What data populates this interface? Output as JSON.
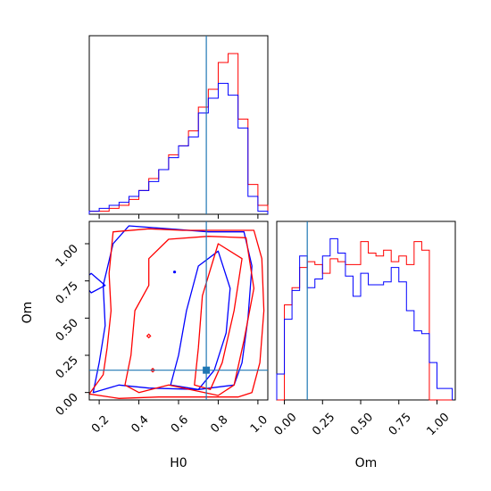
{
  "chart_data": {
    "type": "corner",
    "parameters": [
      "H0",
      "Om"
    ],
    "colors": {
      "red": "#ff0000",
      "blue": "#0000ff",
      "truth": "#1f77b4"
    },
    "truth": {
      "H0": 0.74,
      "Om": 0.15
    },
    "hist_H0": {
      "title": "",
      "xlim": [
        0.15,
        1.05
      ],
      "bin_edges": [
        0.15,
        0.2,
        0.25,
        0.3,
        0.35,
        0.4,
        0.45,
        0.5,
        0.55,
        0.6,
        0.65,
        0.7,
        0.75,
        0.8,
        0.85,
        0.9,
        0.95,
        1.0,
        1.05
      ],
      "series": [
        {
          "color": "red",
          "values": [
            1,
            1,
            2,
            3,
            5,
            8,
            12,
            15,
            20,
            23,
            28,
            36,
            42,
            51,
            54,
            32,
            10,
            3
          ]
        },
        {
          "color": "blue",
          "values": [
            1,
            2,
            3,
            4,
            6,
            8,
            11,
            15,
            19,
            23,
            26,
            34,
            39,
            44,
            40,
            29,
            6,
            1
          ]
        }
      ]
    },
    "hist_Om": {
      "xlim": [
        -0.05,
        1.12
      ],
      "xticks": [
        "0.00",
        "0.25",
        "0.50",
        "0.75",
        "1.00"
      ],
      "bin_edges": [
        -0.05,
        0.0,
        0.05,
        0.1,
        0.15,
        0.2,
        0.25,
        0.3,
        0.35,
        0.4,
        0.45,
        0.5,
        0.55,
        0.6,
        0.65,
        0.7,
        0.75,
        0.8,
        0.85,
        0.9,
        0.95,
        1.0,
        1.05,
        1.1
      ],
      "series": [
        {
          "color": "red",
          "values": [
            0,
            33,
            39,
            46,
            48,
            47,
            44,
            49,
            48,
            47,
            47,
            55,
            51,
            50,
            52,
            48,
            50,
            47,
            55,
            52,
            0,
            0,
            0
          ]
        },
        {
          "color": "blue",
          "values": [
            9,
            28,
            38,
            50,
            39,
            42,
            50,
            56,
            51,
            43,
            36,
            44,
            40,
            40,
            41,
            46,
            41,
            31,
            24,
            23,
            13,
            4,
            4
          ]
        }
      ]
    },
    "contour": {
      "xlabel": "H0",
      "ylabel": "Om",
      "xlim": [
        0.15,
        1.05
      ],
      "ylim": [
        -0.05,
        1.15
      ],
      "xticks": [
        "0.2",
        "0.4",
        "0.6",
        "0.8",
        "1.0"
      ],
      "yticks": [
        "0.00",
        "0.25",
        "0.50",
        "0.75",
        "1.00"
      ],
      "red_levels": [
        [
          [
            0.15,
            -0.01
          ],
          [
            0.22,
            0.12
          ],
          [
            0.24,
            0.3
          ],
          [
            0.26,
            0.55
          ],
          [
            0.25,
            0.8
          ],
          [
            0.27,
            1.08
          ],
          [
            0.45,
            1.1
          ],
          [
            0.62,
            1.09
          ],
          [
            0.8,
            1.09
          ],
          [
            0.98,
            1.09
          ],
          [
            1.02,
            0.9
          ],
          [
            1.03,
            0.55
          ],
          [
            1.01,
            0.2
          ],
          [
            0.97,
            0.0
          ],
          [
            0.9,
            -0.03
          ],
          [
            0.75,
            -0.03
          ],
          [
            0.5,
            -0.03
          ],
          [
            0.3,
            -0.04
          ],
          [
            0.15,
            -0.01
          ]
        ],
        [
          [
            0.33,
            0.05
          ],
          [
            0.36,
            0.25
          ],
          [
            0.38,
            0.55
          ],
          [
            0.45,
            0.72
          ],
          [
            0.45,
            0.9
          ],
          [
            0.55,
            1.03
          ],
          [
            0.75,
            1.05
          ],
          [
            0.94,
            1.04
          ],
          [
            0.98,
            0.7
          ],
          [
            0.93,
            0.35
          ],
          [
            0.88,
            0.05
          ],
          [
            0.8,
            -0.02
          ],
          [
            0.55,
            0.05
          ],
          [
            0.4,
            0.0
          ],
          [
            0.33,
            0.05
          ]
        ],
        [
          [
            0.68,
            0.05
          ],
          [
            0.7,
            0.3
          ],
          [
            0.72,
            0.65
          ],
          [
            0.8,
            1.0
          ],
          [
            0.92,
            0.9
          ],
          [
            0.88,
            0.55
          ],
          [
            0.82,
            0.2
          ],
          [
            0.76,
            0.02
          ],
          [
            0.68,
            0.05
          ]
        ]
      ],
      "blue_levels": [
        [
          [
            0.17,
            0.0
          ],
          [
            0.2,
            0.2
          ],
          [
            0.23,
            0.45
          ],
          [
            0.22,
            0.72
          ],
          [
            0.27,
            1.0
          ],
          [
            0.35,
            1.12
          ],
          [
            0.55,
            1.1
          ],
          [
            0.75,
            1.08
          ],
          [
            0.93,
            1.08
          ],
          [
            0.97,
            0.85
          ],
          [
            0.95,
            0.5
          ],
          [
            0.92,
            0.2
          ],
          [
            0.88,
            0.05
          ],
          [
            0.7,
            0.02
          ],
          [
            0.45,
            0.03
          ],
          [
            0.3,
            0.05
          ],
          [
            0.17,
            0.0
          ]
        ],
        [
          [
            0.56,
            0.05
          ],
          [
            0.6,
            0.25
          ],
          [
            0.64,
            0.55
          ],
          [
            0.7,
            0.85
          ],
          [
            0.8,
            0.95
          ],
          [
            0.86,
            0.7
          ],
          [
            0.84,
            0.4
          ],
          [
            0.78,
            0.15
          ],
          [
            0.7,
            0.02
          ],
          [
            0.56,
            0.05
          ]
        ],
        [
          [
            0.11,
            0.75
          ],
          [
            0.16,
            0.8
          ],
          [
            0.23,
            0.72
          ],
          [
            0.16,
            0.67
          ],
          [
            0.11,
            0.75
          ]
        ]
      ]
    }
  }
}
